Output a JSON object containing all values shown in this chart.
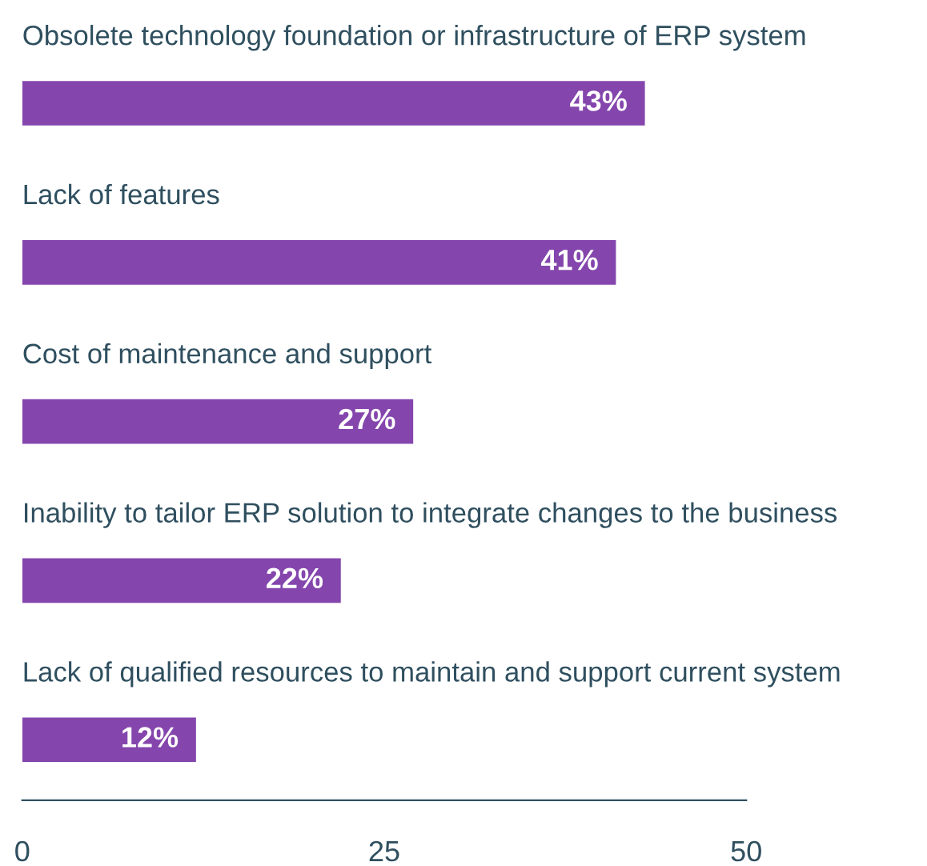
{
  "chart_data": {
    "type": "bar",
    "orientation": "horizontal",
    "categories": [
      "Obsolete technology foundation or infrastructure of ERP system",
      "Lack of features",
      "Cost of maintenance and support",
      "Inability to tailor ERP solution to integrate changes to the business",
      "Lack of qualified resources to maintain and support current system"
    ],
    "values": [
      43,
      41,
      27,
      22,
      12
    ],
    "value_labels": [
      "43%",
      "41%",
      "27%",
      "22%",
      "12%"
    ],
    "color": "#8446ad",
    "xlim": [
      0,
      50
    ],
    "xticks": [
      0,
      25,
      50
    ],
    "grid": false
  }
}
